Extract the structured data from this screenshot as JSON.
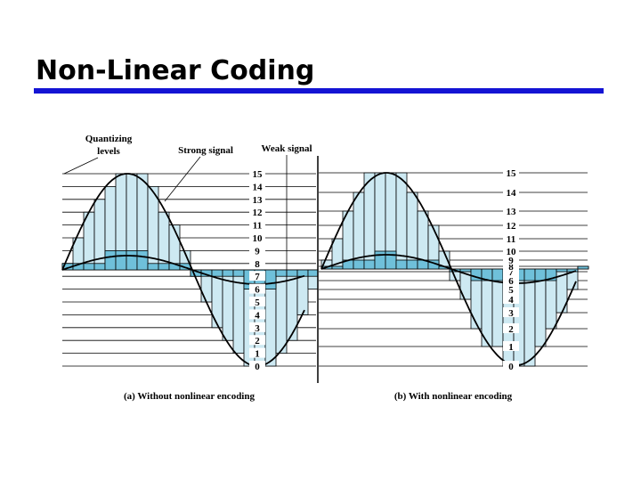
{
  "title": "Non-Linear Coding",
  "annotations": {
    "quantizing_levels": [
      "Quantizing",
      "levels"
    ],
    "strong_signal": "Strong signal",
    "weak_signal": "Weak signal"
  },
  "panels": [
    {
      "levels": [
        0,
        1,
        2,
        3,
        4,
        5,
        6,
        7,
        8,
        9,
        10,
        11,
        12,
        13,
        14,
        15
      ],
      "caption": "(a) Without nonlinear encoding"
    },
    {
      "levels": [
        0,
        1,
        2,
        3,
        4,
        5,
        6,
        7,
        8,
        9,
        10,
        11,
        12,
        13,
        14,
        15
      ],
      "caption": "(b) With nonlinear encoding"
    }
  ]
}
